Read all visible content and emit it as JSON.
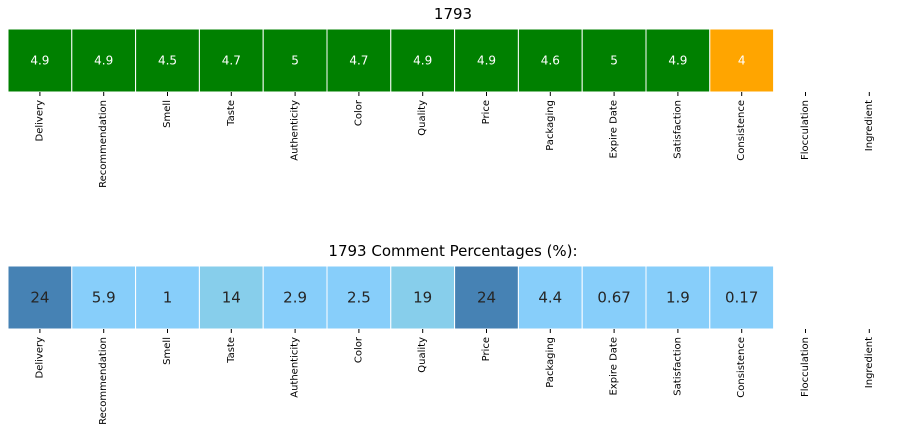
{
  "chart_data": [
    {
      "type": "heatmap",
      "title": "1793",
      "categories": [
        "Delivery",
        "Recommendation",
        "Smell",
        "Taste",
        "Authenticity",
        "Color",
        "Quality",
        "Price",
        "Packaging",
        "Expire Date",
        "Satisfaction",
        "Consistence",
        "Flocculation",
        "Ingredient"
      ],
      "values": [
        4.9,
        4.9,
        4.5,
        4.7,
        5,
        4.7,
        4.9,
        4.9,
        4.6,
        5,
        4.9,
        4,
        null,
        null
      ],
      "cell_colors": [
        "#008000",
        "#008000",
        "#008000",
        "#008000",
        "#008000",
        "#008000",
        "#008000",
        "#008000",
        "#008000",
        "#008000",
        "#008000",
        "#ffa500",
        null,
        null
      ],
      "value_text_color": "#ffffff",
      "grid": false,
      "legend": "none"
    },
    {
      "type": "heatmap",
      "title": "1793 Comment Percentages (%):",
      "categories": [
        "Delivery",
        "Recommendation",
        "Smell",
        "Taste",
        "Authenticity",
        "Color",
        "Quality",
        "Price",
        "Packaging",
        "Expire Date",
        "Satisfaction",
        "Consistence",
        "Flocculation",
        "Ingredient"
      ],
      "values": [
        24,
        5.9,
        1,
        14,
        2.9,
        2.5,
        19,
        24,
        4.4,
        0.67,
        1.9,
        0.17,
        null,
        null
      ],
      "cell_colors": [
        "#4682b4",
        "#87cefa",
        "#87cefa",
        "#87ceeb",
        "#87cefa",
        "#87cefa",
        "#87ceeb",
        "#4682b4",
        "#87cefa",
        "#87cefa",
        "#87cefa",
        "#87cefa",
        null,
        null
      ],
      "value_text_color": "#262626",
      "grid": false,
      "legend": "none"
    }
  ]
}
